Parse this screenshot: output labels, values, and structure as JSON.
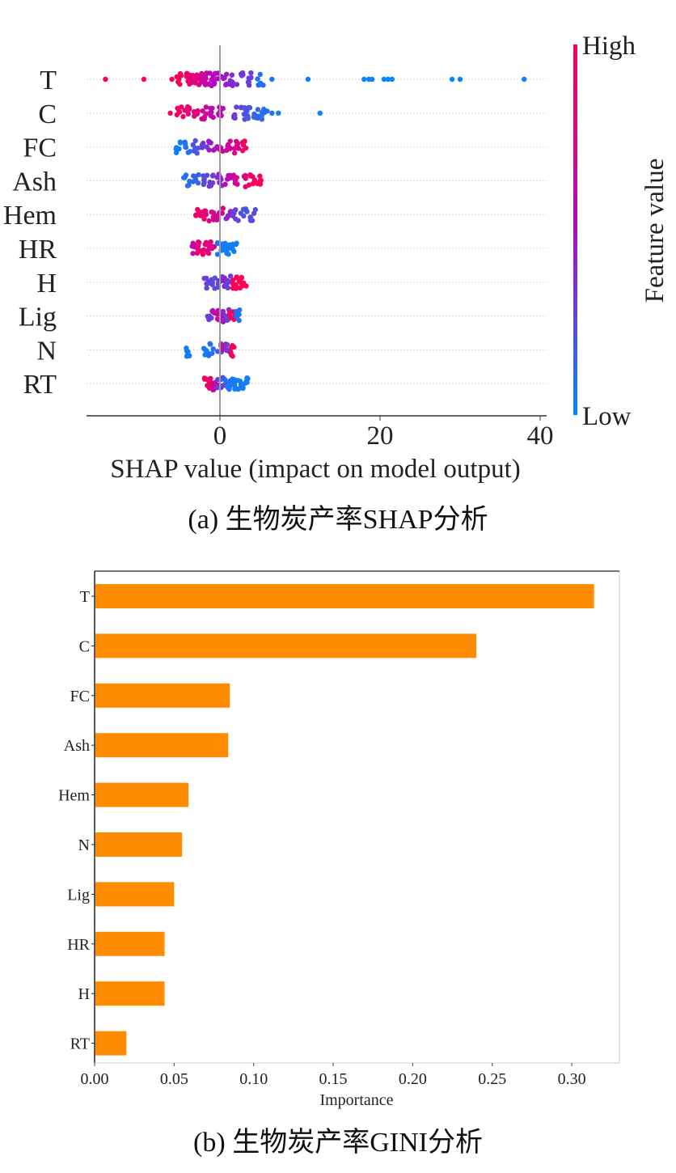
{
  "chart_data": [
    {
      "type": "scatter",
      "subtype": "shap-beeswarm",
      "title": "",
      "xlabel": "SHAP value (impact on model output)",
      "ylabel": "",
      "xlim": [
        -17,
        41
      ],
      "xticks": [
        0,
        20,
        40
      ],
      "xtick_labels": [
        "0",
        "20",
        "40"
      ],
      "features": [
        "T",
        "C",
        "FC",
        "Ash",
        "Hem",
        "HR",
        "H",
        "Lig",
        "N",
        "RT"
      ],
      "colorbar": {
        "label": "Feature value",
        "high": "High",
        "low": "Low",
        "high_color": "#ff0052",
        "mid_color": "#b10ac0",
        "low_color": "#008bfb"
      },
      "series": [
        {
          "name": "T",
          "ranges": {
            "min": -14.3,
            "max": 38.0
          },
          "points": [
            [
              -14.3,
              1
            ],
            [
              -9.5,
              1
            ],
            [
              -6,
              1
            ],
            [
              -5,
              0.95
            ],
            [
              -4,
              0.9
            ],
            [
              -3.5,
              0.85
            ],
            [
              -3,
              0.8
            ],
            [
              -2.5,
              0.75
            ],
            [
              -2,
              0.65
            ],
            [
              -1.5,
              0.6
            ],
            [
              -1,
              0.55
            ],
            [
              -0.5,
              0.5
            ],
            [
              0.5,
              0.45
            ],
            [
              1.5,
              0.38
            ],
            [
              2.5,
              0.33
            ],
            [
              3.5,
              0.3
            ],
            [
              5,
              0.1
            ],
            [
              6.5,
              0.08
            ],
            [
              11,
              0.05
            ],
            [
              18,
              0.02
            ],
            [
              18.6,
              0.02
            ],
            [
              19,
              0.02
            ],
            [
              20.5,
              0.02
            ],
            [
              21,
              0.02
            ],
            [
              21.5,
              0.02
            ],
            [
              29,
              0.02
            ],
            [
              30,
              0.02
            ],
            [
              38,
              0.02
            ]
          ]
        },
        {
          "name": "C",
          "ranges": {
            "min": -6.2,
            "max": 12.5
          },
          "points": [
            [
              -6.2,
              0.95
            ],
            [
              -5,
              0.9
            ],
            [
              -4,
              0.85
            ],
            [
              -3,
              0.8
            ],
            [
              -2,
              0.7
            ],
            [
              -1,
              0.6
            ],
            [
              0,
              0.55
            ],
            [
              2,
              0.3
            ],
            [
              2.8,
              0.25
            ],
            [
              3.5,
              0.2
            ],
            [
              4.5,
              0.15
            ],
            [
              5.5,
              0.12
            ],
            [
              6.5,
              0.08
            ],
            [
              7.3,
              0.05
            ],
            [
              12.5,
              0.02
            ]
          ]
        },
        {
          "name": "FC",
          "ranges": {
            "min": -5.1,
            "max": 3.1
          },
          "points": [
            [
              -5.1,
              0.05
            ],
            [
              -4,
              0.1
            ],
            [
              -3,
              0.2
            ],
            [
              -2,
              0.3
            ],
            [
              -1,
              0.45
            ],
            [
              0,
              0.6
            ],
            [
              1,
              0.7
            ],
            [
              2,
              0.75
            ],
            [
              3.1,
              0.95
            ]
          ]
        },
        {
          "name": "Ash",
          "ranges": {
            "min": -4.2,
            "max": 5.0
          },
          "points": [
            [
              -4.2,
              0.1
            ],
            [
              -3,
              0.15
            ],
            [
              -2,
              0.25
            ],
            [
              -1,
              0.3
            ],
            [
              0,
              0.4
            ],
            [
              1,
              0.55
            ],
            [
              2,
              0.7
            ],
            [
              3,
              0.8
            ],
            [
              4,
              0.9
            ],
            [
              5,
              1
            ]
          ]
        },
        {
          "name": "Hem",
          "ranges": {
            "min": -2.7,
            "max": 4.1
          },
          "points": [
            [
              -2.7,
              0.9
            ],
            [
              -2,
              0.85
            ],
            [
              -1,
              0.75
            ],
            [
              0,
              0.7
            ],
            [
              1,
              0.4
            ],
            [
              2,
              0.3
            ],
            [
              3,
              0.2
            ],
            [
              4.1,
              0.25
            ]
          ]
        },
        {
          "name": "HR",
          "ranges": {
            "min": -3.1,
            "max": 1.7
          },
          "points": [
            [
              -3.1,
              0.6
            ],
            [
              -2.5,
              0.85
            ],
            [
              -2,
              0.9
            ],
            [
              -1.5,
              0.8
            ],
            [
              -1,
              0.75
            ],
            [
              0,
              0.1
            ],
            [
              0.5,
              0.05
            ],
            [
              1,
              0.05
            ],
            [
              1.7,
              0.05
            ]
          ]
        },
        {
          "name": "H",
          "ranges": {
            "min": -1.7,
            "max": 2.9
          },
          "points": [
            [
              -1.7,
              0.3
            ],
            [
              -1,
              0.25
            ],
            [
              0,
              0.3
            ],
            [
              0.5,
              0.4
            ],
            [
              1,
              0.3
            ],
            [
              1.7,
              0.95
            ],
            [
              2.3,
              1
            ],
            [
              2.9,
              1
            ]
          ]
        },
        {
          "name": "Lig",
          "ranges": {
            "min": -1.3,
            "max": 2.2
          },
          "points": [
            [
              -1.3,
              0.3
            ],
            [
              -0.5,
              0.6
            ],
            [
              0,
              0.7
            ],
            [
              0.5,
              0.4
            ],
            [
              1,
              0.3
            ],
            [
              1.5,
              0.95
            ],
            [
              2.2,
              0.1
            ]
          ]
        },
        {
          "name": "N",
          "ranges": {
            "min": -3.8,
            "max": 1.5
          },
          "points": [
            [
              -3.8,
              0.05
            ],
            [
              -1.7,
              0.05
            ],
            [
              -1,
              0.1
            ],
            [
              0,
              0.2
            ],
            [
              0.5,
              0.7
            ],
            [
              1,
              0.3
            ],
            [
              1.5,
              0.95
            ]
          ]
        },
        {
          "name": "RT",
          "ranges": {
            "min": -1.7,
            "max": 3.1
          },
          "points": [
            [
              -1.7,
              0.95
            ],
            [
              -1,
              0.85
            ],
            [
              -0.5,
              0.6
            ],
            [
              0,
              0.3
            ],
            [
              0.5,
              0.2
            ],
            [
              1,
              0.1
            ],
            [
              1.5,
              0.05
            ],
            [
              2,
              0.05
            ],
            [
              2.8,
              0.05
            ],
            [
              3.1,
              0.05
            ]
          ]
        }
      ]
    },
    {
      "type": "bar",
      "orientation": "horizontal",
      "title": "",
      "xlabel": "Importance",
      "ylabel": "",
      "xlim": [
        0,
        0.33
      ],
      "xticks": [
        0.0,
        0.05,
        0.1,
        0.15,
        0.2,
        0.25,
        0.3
      ],
      "xtick_labels": [
        "0.00",
        "0.05",
        "0.10",
        "0.15",
        "0.20",
        "0.25",
        "0.30"
      ],
      "categories": [
        "T",
        "C",
        "FC",
        "Ash",
        "Hem",
        "N",
        "Lig",
        "HR",
        "H",
        "RT"
      ],
      "values": [
        0.314,
        0.24,
        0.085,
        0.084,
        0.059,
        0.055,
        0.05,
        0.044,
        0.044,
        0.02
      ],
      "bar_color": "#ff8c00",
      "grid": false
    }
  ],
  "captions": {
    "a": "(a) 生物炭产率SHAP分析",
    "b": "(b) 生物炭产率GINI分析"
  }
}
